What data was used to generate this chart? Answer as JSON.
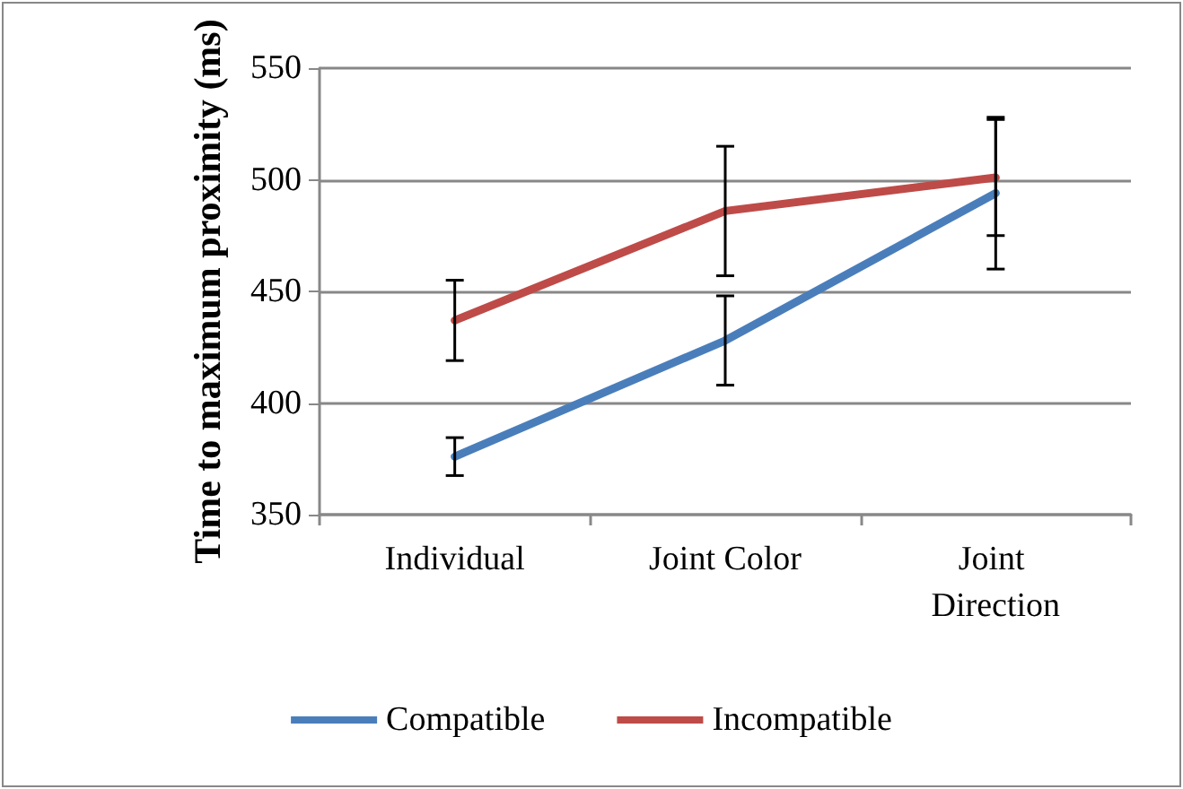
{
  "chart_data": {
    "type": "line",
    "ylabel": "Time to maximum proximity (ms)",
    "categories": [
      "Individual",
      "Joint Color",
      "Joint Direction"
    ],
    "series": [
      {
        "name": "Compatible",
        "color": "#4a7ebb",
        "values": [
          376,
          428,
          494
        ],
        "errors": [
          8.5,
          20,
          34
        ]
      },
      {
        "name": "Incompatible",
        "color": "#be4b48",
        "values": [
          437,
          486,
          501
        ],
        "errors": [
          18,
          29,
          26
        ]
      }
    ],
    "ylim": [
      350,
      550
    ],
    "yticks": [
      350,
      400,
      450,
      500,
      550
    ],
    "grid": "y",
    "legend": "bottom",
    "marker": "none",
    "line_style": "solid"
  }
}
